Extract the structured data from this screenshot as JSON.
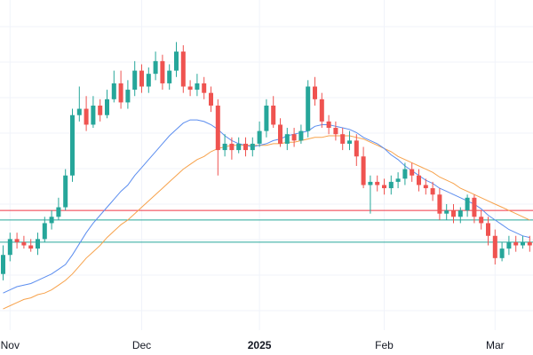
{
  "chart_data": {
    "type": "candlestick",
    "title": "",
    "x_ticks": [
      {
        "label": "Nov",
        "index": 1,
        "bold": false
      },
      {
        "label": "Dec",
        "index": 20,
        "bold": false
      },
      {
        "label": "2025",
        "index": 37,
        "bold": true
      },
      {
        "label": "Feb",
        "index": 55,
        "bold": false
      },
      {
        "label": "Mar",
        "index": 71,
        "bold": false
      }
    ],
    "ylim": [
      0,
      100
    ],
    "horizontal_levels": [
      {
        "name": "resistance",
        "value": 36,
        "color": "#f23645"
      },
      {
        "name": "support-upper",
        "value": 33,
        "color": "#26a69a"
      },
      {
        "name": "support-lower",
        "value": 26,
        "color": "#26a69a"
      }
    ],
    "colors": {
      "up": "#26a69a",
      "down": "#ef5350",
      "ma_fast": "#5b8def",
      "ma_slow": "#f7a24b",
      "grid": "#f0f3fa"
    },
    "candles": [
      [
        16,
        22,
        25,
        14
      ],
      [
        22,
        27,
        29,
        20
      ],
      [
        27,
        26,
        29,
        24
      ],
      [
        26,
        25,
        28,
        24
      ],
      [
        25,
        24,
        27,
        23
      ],
      [
        24,
        27,
        29,
        22
      ],
      [
        27,
        32,
        34,
        26
      ],
      [
        32,
        34,
        36,
        30
      ],
      [
        34,
        37,
        40,
        33
      ],
      [
        37,
        47,
        49,
        36
      ],
      [
        47,
        66,
        68,
        45
      ],
      [
        66,
        68,
        75,
        64
      ],
      [
        68,
        63,
        72,
        61
      ],
      [
        63,
        69,
        72,
        62
      ],
      [
        69,
        66,
        71,
        64
      ],
      [
        66,
        71,
        74,
        65
      ],
      [
        71,
        76,
        80,
        70
      ],
      [
        76,
        70,
        80,
        68
      ],
      [
        70,
        74,
        77,
        68
      ],
      [
        74,
        80,
        83,
        72
      ],
      [
        80,
        75,
        82,
        73
      ],
      [
        75,
        79,
        81,
        73
      ],
      [
        79,
        83,
        86,
        77
      ],
      [
        83,
        76,
        85,
        74
      ],
      [
        76,
        80,
        82,
        74
      ],
      [
        80,
        86,
        89,
        78
      ],
      [
        86,
        75,
        88,
        73
      ],
      [
        75,
        74,
        77,
        72
      ],
      [
        74,
        76,
        79,
        72
      ],
      [
        76,
        73,
        78,
        71
      ],
      [
        73,
        69,
        75,
        67
      ],
      [
        69,
        55,
        71,
        47
      ],
      [
        55,
        57,
        60,
        53
      ],
      [
        57,
        55,
        59,
        52
      ],
      [
        55,
        57,
        59,
        54
      ],
      [
        57,
        55,
        59,
        53
      ],
      [
        55,
        57,
        59,
        53
      ],
      [
        57,
        61,
        64,
        56
      ],
      [
        61,
        69,
        71,
        59
      ],
      [
        69,
        63,
        72,
        62
      ],
      [
        63,
        57,
        65,
        56
      ],
      [
        57,
        60,
        62,
        55
      ],
      [
        60,
        58,
        62,
        56
      ],
      [
        58,
        61,
        63,
        57
      ],
      [
        61,
        75,
        77,
        59
      ],
      [
        75,
        71,
        78,
        69
      ],
      [
        71,
        64,
        73,
        62
      ],
      [
        64,
        62,
        66,
        60
      ],
      [
        62,
        60,
        64,
        58
      ],
      [
        60,
        57,
        62,
        55
      ],
      [
        57,
        58,
        61,
        55
      ],
      [
        58,
        53,
        60,
        50
      ],
      [
        53,
        44,
        56,
        43
      ],
      [
        44,
        45,
        47,
        35
      ],
      [
        45,
        44,
        47,
        42
      ],
      [
        44,
        43,
        46,
        41
      ],
      [
        43,
        45,
        47,
        41
      ],
      [
        45,
        46,
        48,
        43
      ],
      [
        46,
        49,
        51,
        44
      ],
      [
        49,
        47,
        51,
        45
      ],
      [
        47,
        44,
        49,
        42
      ],
      [
        44,
        43,
        46,
        41
      ],
      [
        43,
        41,
        45,
        39
      ],
      [
        41,
        35,
        43,
        33
      ],
      [
        35,
        36,
        38,
        33
      ],
      [
        36,
        34,
        38,
        32
      ],
      [
        34,
        36,
        37,
        32
      ],
      [
        36,
        40,
        41,
        34
      ],
      [
        40,
        34,
        41,
        32
      ],
      [
        34,
        32,
        36,
        30
      ],
      [
        32,
        28,
        34,
        25
      ],
      [
        28,
        21,
        30,
        19
      ],
      [
        21,
        24,
        26,
        20
      ],
      [
        24,
        26,
        28,
        22
      ],
      [
        26,
        25,
        28,
        23
      ],
      [
        25,
        26,
        28,
        24
      ],
      [
        26,
        25,
        28,
        23
      ]
    ],
    "ma_fast": [
      10,
      11,
      12,
      12.5,
      13,
      14,
      15,
      16,
      17.5,
      19,
      22,
      25.5,
      29,
      32,
      34.5,
      37,
      39.5,
      42,
      44,
      47,
      49.5,
      52,
      54.5,
      57,
      59.5,
      61.5,
      63.5,
      64.5,
      64.5,
      64,
      63,
      61.5,
      59.5,
      58,
      57,
      56.5,
      56,
      56.5,
      57,
      58,
      58.5,
      59.5,
      60,
      60.5,
      61,
      62.5,
      63,
      63,
      62.5,
      62,
      61.5,
      60.5,
      59,
      58,
      57,
      55.5,
      53.5,
      52,
      50,
      48.5,
      47,
      45.5,
      44.5,
      43,
      42,
      41,
      40,
      39,
      38,
      36.5,
      34.5,
      33,
      31.5,
      30,
      29,
      28,
      27.5
    ],
    "ma_slow": [
      5,
      6,
      7,
      8,
      8.5,
      9.5,
      10,
      11,
      12.5,
      14,
      16,
      18.5,
      21,
      23,
      25,
      27.5,
      29.5,
      31.5,
      33,
      35,
      37,
      39,
      41,
      43,
      45,
      47,
      49,
      50.5,
      52,
      53,
      54.5,
      55.5,
      56,
      56.5,
      56.5,
      56.5,
      56.5,
      56.5,
      56.5,
      57,
      57,
      57.5,
      57.5,
      58,
      58.5,
      59,
      59,
      59.5,
      59.5,
      59.5,
      59.5,
      59,
      58.5,
      57.5,
      56.5,
      55.5,
      54.5,
      53,
      52,
      51,
      50,
      49,
      48,
      46.5,
      45.5,
      44.5,
      43,
      42,
      41,
      40,
      39,
      38,
      37,
      36,
      35,
      34,
      33
    ]
  }
}
